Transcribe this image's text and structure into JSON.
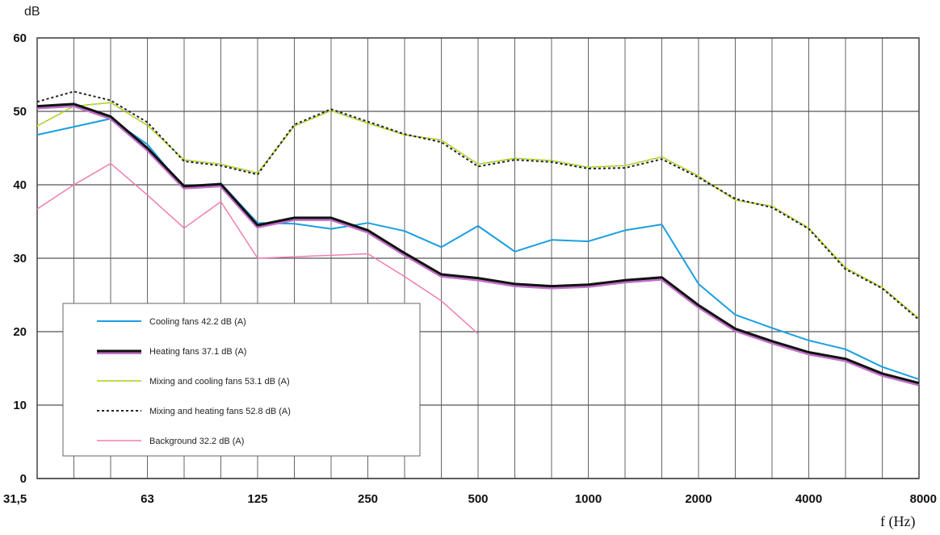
{
  "chart_data": {
    "type": "line",
    "ylabel": "dB",
    "xlabel": "f (Hz)",
    "ylim": [
      0,
      60
    ],
    "yticks": [
      0,
      10,
      20,
      30,
      40,
      50,
      60
    ],
    "x_tick_labels": [
      "31,5",
      "63",
      "125",
      "250",
      "500",
      "1000",
      "2000",
      "4000",
      "8000"
    ],
    "x_bands": [
      "31,5",
      "40",
      "50",
      "63",
      "80",
      "100",
      "125",
      "160",
      "200",
      "250",
      "315",
      "400",
      "500",
      "630",
      "800",
      "1000",
      "1250",
      "1600",
      "2000",
      "2500",
      "3150",
      "4000",
      "5000",
      "6300",
      "8000"
    ],
    "grid": true,
    "legend_position": "bottom-left",
    "series": [
      {
        "name": "Cooling fans 42.2 dB (A)",
        "color": "#1a9fe0",
        "style": "solid",
        "width": 2,
        "values": [
          46.8,
          47.9,
          49,
          45.5,
          39.5,
          40.2,
          34.8,
          34.7,
          34,
          34.8,
          33.7,
          31.5,
          34.4,
          30.9,
          32.5,
          32.3,
          33.8,
          34.6,
          26.5,
          22.3,
          20.5,
          18.8,
          17.6,
          15.2,
          13.5
        ]
      },
      {
        "name": "Heating fans 37.1 dB (A)",
        "color": "#111111",
        "style": "solid",
        "width": 3,
        "outline": "#c070c8",
        "values": [
          50.7,
          51,
          49.3,
          45,
          39.8,
          40.1,
          34.5,
          35.5,
          35.5,
          33.8,
          30.7,
          27.8,
          27.3,
          26.5,
          26.2,
          26.4,
          27,
          27.4,
          23.6,
          20.4,
          18.7,
          17.2,
          16.3,
          14.3,
          13
        ]
      },
      {
        "name": "Mixing and cooling fans 53.1 dB (A)",
        "color": "#d8dc10",
        "style": "dashed",
        "width": 2,
        "values": [
          48,
          50.7,
          51.2,
          48.1,
          43.4,
          42.8,
          41.6,
          48,
          50.1,
          48.4,
          46.8,
          46.1,
          42.8,
          43.6,
          43.3,
          42.4,
          42.6,
          43.8,
          41.2,
          37.9,
          37.1,
          34.1,
          28.7,
          26,
          21.8
        ]
      },
      {
        "name": "Mixing and heating fans 52.8 dB (A)",
        "color": "#222222",
        "style": "dotted",
        "width": 2,
        "values": [
          51.3,
          52.7,
          51.5,
          48.5,
          43.2,
          42.6,
          41.4,
          48.2,
          50.3,
          48.6,
          46.9,
          45.8,
          42.5,
          43.4,
          43.1,
          42.2,
          42.3,
          43.5,
          41,
          38.1,
          36.9,
          34,
          28.5,
          25.9,
          21.6
        ]
      },
      {
        "name": "Background 32.2 dB (A)",
        "color": "#f07eb0",
        "style": "solid",
        "width": 1.5,
        "values": [
          36.7,
          40,
          42.9,
          38.6,
          34.1,
          37.7,
          30,
          30.2,
          30.4,
          30.6,
          27.5,
          24.2,
          19.7,
          null,
          null,
          null,
          null,
          null,
          null,
          null,
          null,
          null,
          null,
          null,
          null
        ]
      }
    ]
  }
}
